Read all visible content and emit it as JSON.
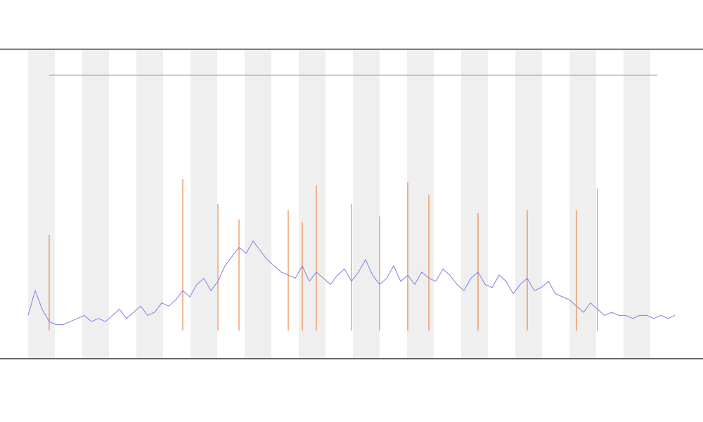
{
  "chart_data": {
    "type": "line",
    "ylim": [
      0,
      100
    ],
    "series": [
      {
        "color": "#7f7fe8",
        "values": [
          14,
          22,
          16,
          12,
          11,
          11,
          12,
          13,
          14,
          12,
          13,
          12,
          14,
          16,
          13,
          15,
          17,
          14,
          15,
          18,
          17,
          19,
          22,
          20,
          24,
          26,
          22,
          25,
          30,
          33,
          36,
          34,
          38,
          35,
          32,
          30,
          28,
          27,
          26,
          30,
          25,
          28,
          26,
          24,
          27,
          29,
          25,
          28,
          32,
          27,
          24,
          26,
          30,
          25,
          27,
          24,
          28,
          26,
          25,
          29,
          27,
          24,
          22,
          26,
          28,
          24,
          23,
          27,
          25,
          21,
          24,
          26,
          22,
          23,
          25,
          21,
          20,
          19,
          17,
          15,
          18,
          16,
          14,
          15,
          14,
          14,
          13,
          14,
          14,
          13,
          14,
          13,
          14
        ]
      },
      {
        "color": "#e8732a",
        "values": [
          null,
          null,
          null,
          40,
          null,
          null,
          null,
          null,
          null,
          null,
          null,
          null,
          null,
          null,
          null,
          null,
          null,
          null,
          null,
          null,
          null,
          null,
          58,
          null,
          null,
          null,
          null,
          50,
          null,
          null,
          45,
          null,
          null,
          null,
          null,
          null,
          null,
          48,
          null,
          44,
          null,
          56,
          null,
          null,
          null,
          null,
          50,
          null,
          null,
          null,
          46,
          null,
          null,
          null,
          57,
          null,
          null,
          53,
          null,
          null,
          null,
          null,
          null,
          null,
          47,
          null,
          null,
          null,
          null,
          null,
          null,
          48,
          null,
          null,
          null,
          null,
          null,
          null,
          48,
          null,
          null,
          55,
          null,
          null,
          null,
          null,
          null,
          null,
          null,
          null,
          null,
          null,
          null
        ]
      }
    ]
  }
}
